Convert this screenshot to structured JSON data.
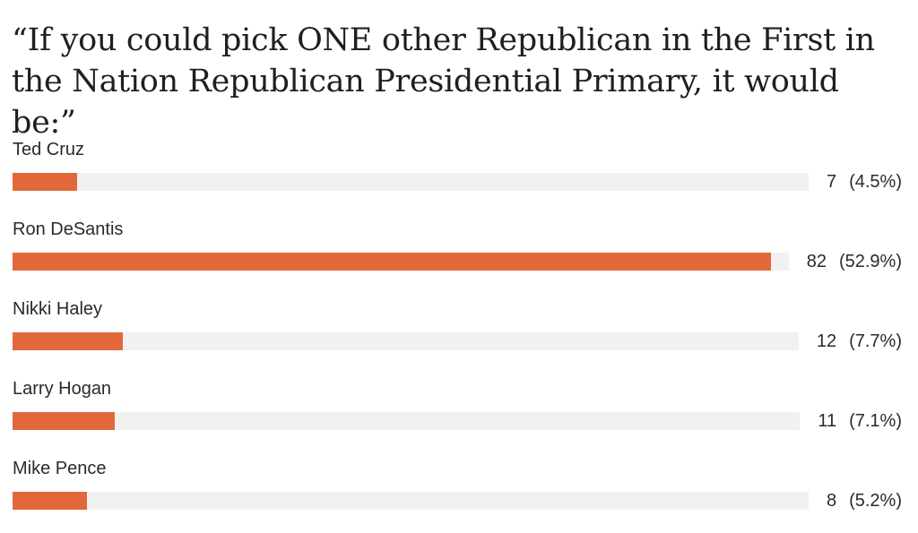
{
  "chart_data": {
    "type": "bar",
    "title": "“If you could pick ONE other Republican in the First in the Nation Republican Presidential Primary, it would be:”",
    "categories": [
      "Ted Cruz",
      "Ron DeSantis",
      "Nikki Haley",
      "Larry Hogan",
      "Mike Pence"
    ],
    "values": [
      7,
      82,
      12,
      11,
      8
    ],
    "percent_labels": [
      "(4.5%)",
      "(52.9%)",
      "(7.7%)",
      "(7.1%)",
      "(5.2%)"
    ],
    "percents": [
      4.5,
      52.9,
      7.7,
      7.1,
      5.2
    ],
    "bar_color": "#e2683c",
    "track_color": "#f1f1f1"
  }
}
